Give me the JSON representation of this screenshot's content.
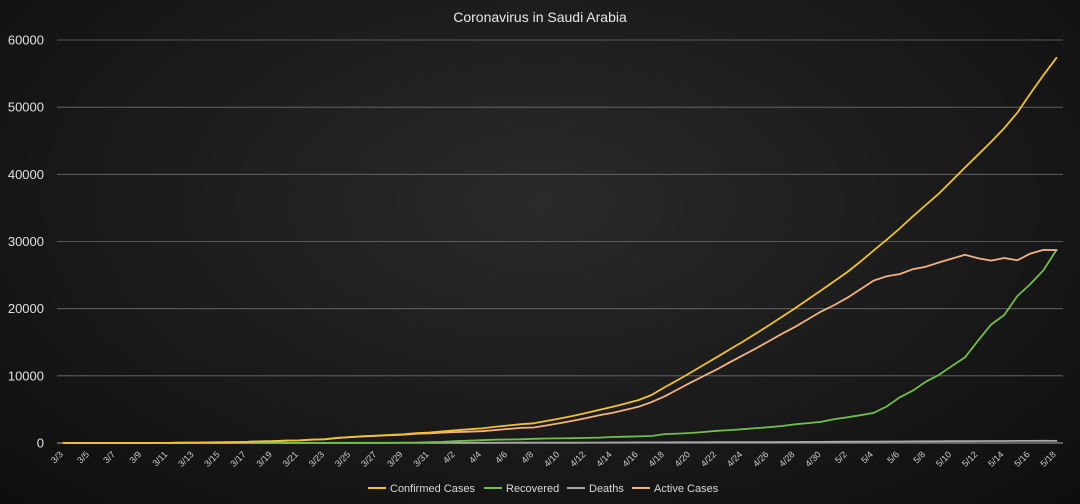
{
  "chart_data": {
    "type": "line",
    "title": "Coronavirus in Saudi Arabia",
    "xlabel": "",
    "ylabel": "",
    "ylim": [
      0,
      60000
    ],
    "yticks": [
      0,
      10000,
      20000,
      30000,
      40000,
      50000,
      60000
    ],
    "grid": true,
    "legend": "bottom",
    "x": [
      "3/3",
      "3/4",
      "3/5",
      "3/6",
      "3/7",
      "3/8",
      "3/9",
      "3/10",
      "3/11",
      "3/12",
      "3/13",
      "3/14",
      "3/15",
      "3/16",
      "3/17",
      "3/18",
      "3/19",
      "3/20",
      "3/21",
      "3/22",
      "3/23",
      "3/24",
      "3/25",
      "3/26",
      "3/27",
      "3/28",
      "3/29",
      "3/30",
      "3/31",
      "4/1",
      "4/2",
      "4/3",
      "4/4",
      "4/5",
      "4/6",
      "4/7",
      "4/8",
      "4/9",
      "4/10",
      "4/11",
      "4/12",
      "4/13",
      "4/14",
      "4/15",
      "4/16",
      "4/17",
      "4/18",
      "4/19",
      "4/20",
      "4/21",
      "4/22",
      "4/23",
      "4/24",
      "4/25",
      "4/26",
      "4/27",
      "4/28",
      "4/29",
      "4/30",
      "5/1",
      "5/2",
      "5/3",
      "5/4",
      "5/5",
      "5/6",
      "5/7",
      "5/8",
      "5/9",
      "5/10",
      "5/11",
      "5/12",
      "5/13",
      "5/14",
      "5/15",
      "5/16",
      "5/17",
      "5/18"
    ],
    "xtick_labels": [
      "3/3",
      "3/5",
      "3/7",
      "3/9",
      "3/11",
      "3/13",
      "3/15",
      "3/17",
      "3/19",
      "3/21",
      "3/23",
      "3/25",
      "3/27",
      "3/29",
      "3/31",
      "4/2",
      "4/4",
      "4/6",
      "4/8",
      "4/10",
      "4/12",
      "4/14",
      "4/16",
      "4/18",
      "4/20",
      "4/22",
      "4/24",
      "4/26",
      "4/28",
      "4/30",
      "5/2",
      "5/4",
      "5/6",
      "5/8",
      "5/10",
      "5/12",
      "5/14",
      "5/16",
      "5/18"
    ],
    "series": [
      {
        "name": "Confirmed Cases",
        "color": "#f2c12e",
        "values": [
          1,
          1,
          5,
          5,
          11,
          11,
          15,
          20,
          21,
          45,
          62,
          86,
          103,
          118,
          171,
          238,
          274,
          344,
          392,
          511,
          562,
          767,
          900,
          1012,
          1104,
          1203,
          1299,
          1453,
          1563,
          1720,
          1885,
          2039,
          2179,
          2402,
          2605,
          2795,
          2932,
          3287,
          3651,
          4033,
          4462,
          4934,
          5369,
          5862,
          6380,
          7142,
          8274,
          9362,
          10484,
          11631,
          12772,
          13930,
          15102,
          16299,
          17522,
          18811,
          20077,
          21402,
          22753,
          24097,
          25459,
          27011,
          28656,
          30251,
          31938,
          33731,
          35432,
          37136,
          39048,
          41014,
          42925,
          44830,
          46869,
          49176,
          52016,
          54752,
          57345
        ]
      },
      {
        "name": "Recovered",
        "color": "#6fbf4a",
        "values": [
          0,
          0,
          0,
          0,
          0,
          0,
          0,
          0,
          0,
          0,
          0,
          1,
          1,
          1,
          6,
          6,
          8,
          8,
          16,
          16,
          16,
          28,
          29,
          33,
          35,
          37,
          66,
          66,
          115,
          165,
          264,
          351,
          420,
          488,
          519,
          551,
          631,
          666,
          685,
          720,
          761,
          805,
          889,
          931,
          990,
          1049,
          1329,
          1398,
          1490,
          1640,
          1812,
          1925,
          2049,
          2215,
          2357,
          2531,
          2784,
          2963,
          3163,
          3555,
          3826,
          4134,
          4476,
          5431,
          6783,
          7798,
          9120,
          10144,
          11457,
          12737,
          15256,
          17622,
          19051,
          21869,
          23659,
          25722,
          28748
        ]
      },
      {
        "name": "Deaths",
        "color": "#a8a8a8",
        "values": [
          0,
          0,
          0,
          0,
          0,
          0,
          0,
          0,
          0,
          0,
          0,
          0,
          0,
          0,
          0,
          0,
          0,
          0,
          0,
          0,
          1,
          1,
          2,
          3,
          4,
          8,
          8,
          8,
          10,
          16,
          21,
          25,
          29,
          34,
          38,
          41,
          41,
          44,
          47,
          52,
          59,
          65,
          73,
          79,
          83,
          87,
          92,
          97,
          103,
          109,
          114,
          121,
          127,
          136,
          139,
          144,
          152,
          162,
          169,
          176,
          191,
          200,
          212,
          221,
          229,
          239,
          246,
          255,
          264,
          273,
          283,
          292,
          302,
          312,
          320,
          329,
          320
        ]
      },
      {
        "name": "Active Cases",
        "color": "#f4b183",
        "values": [
          1,
          1,
          5,
          5,
          11,
          11,
          15,
          20,
          21,
          45,
          62,
          85,
          102,
          117,
          165,
          232,
          266,
          336,
          376,
          495,
          546,
          739,
          871,
          979,
          1069,
          1166,
          1233,
          1387,
          1448,
          1555,
          1621,
          1688,
          1759,
          1914,
          2086,
          2244,
          2301,
          2621,
          2966,
          3313,
          3701,
          4129,
          4480,
          4931,
          5390,
          6093,
          6945,
          7964,
          8994,
          9982,
          10958,
          12009,
          13053,
          14084,
          15165,
          16280,
          17293,
          18440,
          19590,
          20542,
          21633,
          22877,
          24180,
          24820,
          25150,
          25880,
          26250,
          26880,
          27450,
          28020,
          27500,
          27150,
          27550,
          27200,
          28200,
          28750,
          28700
        ]
      }
    ]
  }
}
